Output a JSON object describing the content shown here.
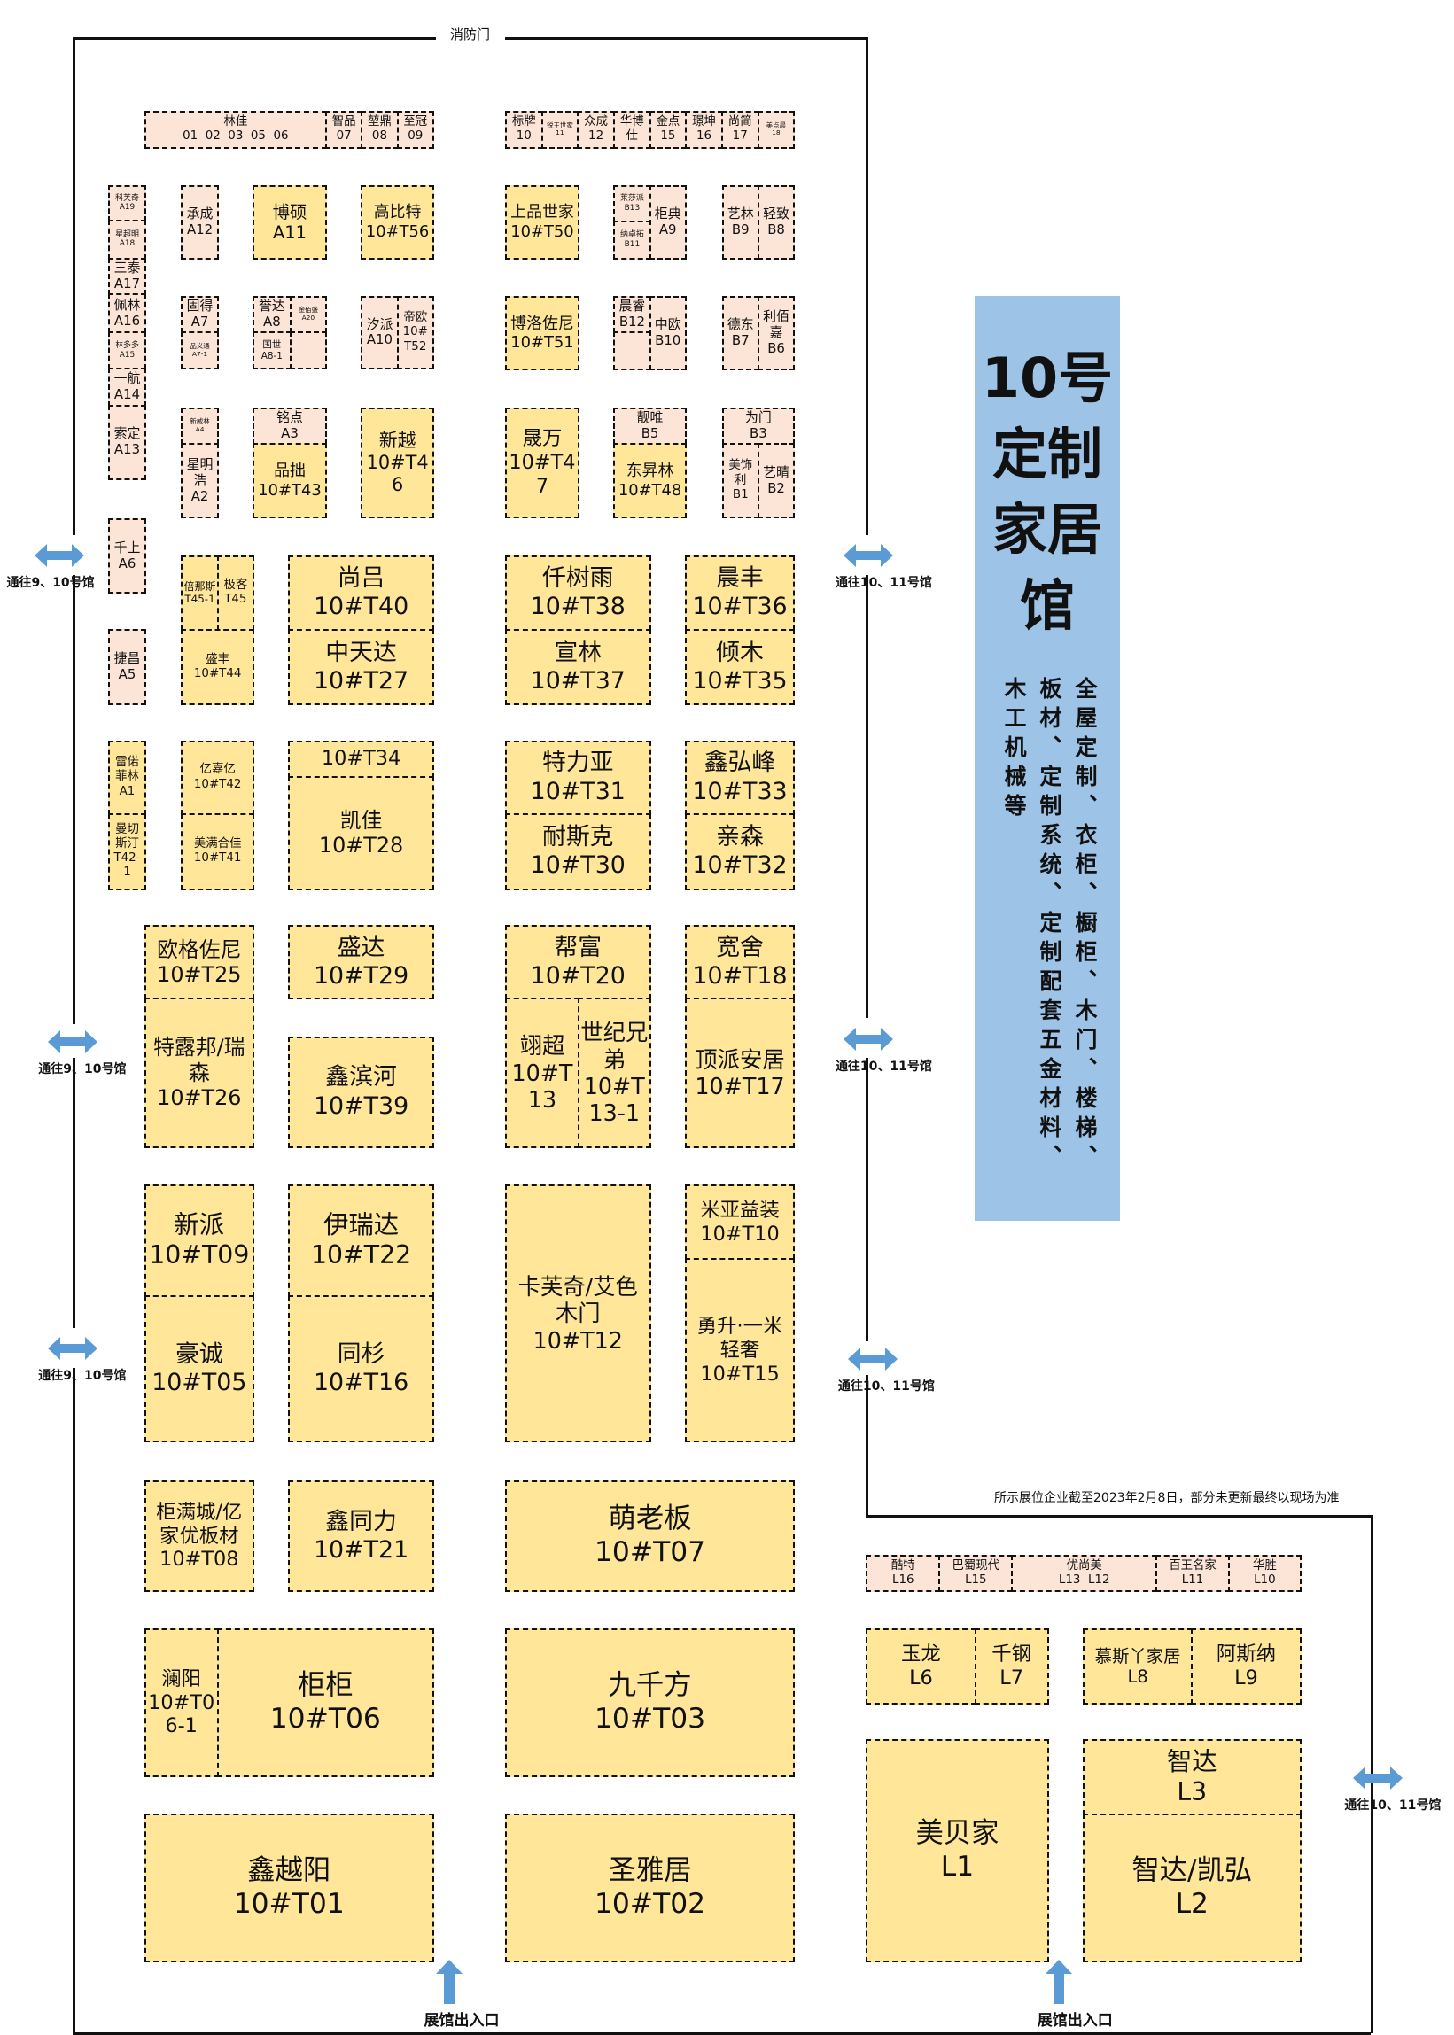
{
  "labels": {
    "fire_door": "消防门",
    "to_halls_9_10": "通往9、10号馆",
    "to_halls_10_11": "通往10、11号馆",
    "entrance": "展馆出入口",
    "note": "所示展位企业截至2023年2月8日，部分未更新最终以现场为准"
  },
  "panel": {
    "title": "10号定制家居馆",
    "columns": [
      "全屋定制、衣柜、橱柜、木门、楼梯、",
      "板材、定制系统、定制配套五金材料、",
      "木工机械等"
    ]
  },
  "colors": {
    "pink_booth": "#fce4d6",
    "yellow_booth": "#ffe699",
    "panel": "#9dc3e6",
    "arrow": "#5b9bd5"
  },
  "booths": [
    {
      "name": "林佳",
      "code": "01  02  03  05  06"
    },
    {
      "name": "智品",
      "code": "07"
    },
    {
      "name": "堃鼎",
      "code": "08"
    },
    {
      "name": "至冠",
      "code": "09"
    },
    {
      "name": "标牌",
      "code": "10"
    },
    {
      "name": "锐王世家",
      "code": "11"
    },
    {
      "name": "众成",
      "code": "12"
    },
    {
      "name": "华博",
      "code": "仕"
    },
    {
      "name": "金点",
      "code": "15"
    },
    {
      "name": "璟坤",
      "code": "16"
    },
    {
      "name": "尚简",
      "code": "17"
    },
    {
      "name": "美点晨",
      "code": "18"
    },
    {
      "name": "科芙奇",
      "code": "A19"
    },
    {
      "name": "星超明",
      "code": "A18"
    },
    {
      "name": "三泰",
      "code": "A17"
    },
    {
      "name": "佩林",
      "code": "A16"
    },
    {
      "name": "林多多",
      "code": "A15"
    },
    {
      "name": "一航",
      "code": "A14"
    },
    {
      "name": "索定",
      "code": "A13"
    },
    {
      "name": "千上",
      "code": "A6"
    },
    {
      "name": "捷昌",
      "code": "A5"
    },
    {
      "name": "雷偌菲林",
      "code": "A1"
    },
    {
      "name": "曼切斯汀",
      "code": "T42-1"
    },
    {
      "name": "承成",
      "code": "A12"
    },
    {
      "name": "固得",
      "code": "A7"
    },
    {
      "name": "品义通",
      "code": "A7-1"
    },
    {
      "name": "新威林",
      "code": "A4"
    },
    {
      "name": "星明浩",
      "code": "A2"
    },
    {
      "name": "博硕",
      "code": "A11"
    },
    {
      "name": "誉达",
      "code": "A8"
    },
    {
      "name": "金佰盛",
      "code": "A20"
    },
    {
      "name": "国世",
      "code": "A8-1"
    },
    {
      "name": "",
      "code": ""
    },
    {
      "name": "铭点",
      "code": "A3"
    },
    {
      "name": "品拙",
      "code": "10#T43"
    },
    {
      "name": "高比特",
      "code": "10#T56"
    },
    {
      "name": "汐派",
      "code": "A10"
    },
    {
      "name": "帝欧",
      "code": "10#T52"
    },
    {
      "name": "新越",
      "code": "10#T46"
    },
    {
      "name": "倍那斯",
      "code": "T45-1"
    },
    {
      "name": "极客",
      "code": "T45"
    },
    {
      "name": "盛丰",
      "code": "10#T44"
    },
    {
      "name": "亿嘉亿",
      "code": "10#T42"
    },
    {
      "name": "美满合佳",
      "code": "10#T41"
    },
    {
      "name": "尚吕",
      "code": "10#T40"
    },
    {
      "name": "中天达",
      "code": "10#T27"
    },
    {
      "name": "",
      "code": "10#T34"
    },
    {
      "name": "凯佳",
      "code": "10#T28"
    },
    {
      "name": "上品世家",
      "code": "10#T50"
    },
    {
      "name": "博洛佐尼",
      "code": "10#T51"
    },
    {
      "name": "晟万",
      "code": "10#T47"
    },
    {
      "name": "莱莎派",
      "code": "B13"
    },
    {
      "name": "纳卓拓",
      "code": "B11"
    },
    {
      "name": "柜典",
      "code": "A9"
    },
    {
      "name": "晨睿",
      "code": "B12"
    },
    {
      "name": "",
      "code": ""
    },
    {
      "name": "中欧",
      "code": "B10"
    },
    {
      "name": "靓唯",
      "code": "B5"
    },
    {
      "name": "东昇林",
      "code": "10#T48"
    },
    {
      "name": "艺林",
      "code": "B9"
    },
    {
      "name": "轻致",
      "code": "B8"
    },
    {
      "name": "德东",
      "code": "B7"
    },
    {
      "name": "利佰嘉",
      "code": "B6"
    },
    {
      "name": "为门",
      "code": "B3"
    },
    {
      "name": "美饰利",
      "code": "B1"
    },
    {
      "name": "艺晴",
      "code": "B2"
    },
    {
      "name": "仟树雨",
      "code": "10#T38"
    },
    {
      "name": "宣林",
      "code": "10#T37"
    },
    {
      "name": "特力亚",
      "code": "10#T31"
    },
    {
      "name": "耐斯克",
      "code": "10#T30"
    },
    {
      "name": "帮富",
      "code": "10#T20"
    },
    {
      "name": "翊超",
      "code": "10#T13"
    },
    {
      "name": "世纪兄弟",
      "code": "10#T13-1"
    },
    {
      "name": "晨丰",
      "code": "10#T36"
    },
    {
      "name": "倾木",
      "code": "10#T35"
    },
    {
      "name": "鑫弘峰",
      "code": "10#T33"
    },
    {
      "name": "亲森",
      "code": "10#T32"
    },
    {
      "name": "宽舍",
      "code": "10#T18"
    },
    {
      "name": "顶派安居",
      "code": "10#T17"
    },
    {
      "name": "欧格佐尼",
      "code": "10#T25"
    },
    {
      "name": "特露邦/瑞森",
      "code": "10#T26"
    },
    {
      "name": "新派",
      "code": "10#T09"
    },
    {
      "name": "豪诚",
      "code": "10#T05"
    },
    {
      "name": "柜满城/亿家优板材",
      "code": "10#T08"
    },
    {
      "name": "澜阳",
      "code": "10#T06-1"
    },
    {
      "name": "柜柜",
      "code": "10#T06"
    },
    {
      "name": "鑫越阳",
      "code": "10#T01"
    },
    {
      "name": "盛达",
      "code": "10#T29"
    },
    {
      "name": "鑫滨河",
      "code": "10#T39"
    },
    {
      "name": "伊瑞达",
      "code": "10#T22"
    },
    {
      "name": "同杉",
      "code": "10#T16"
    },
    {
      "name": "鑫同力",
      "code": "10#T21"
    },
    {
      "name": "卡芙奇/艾色木门",
      "code": "10#T12"
    },
    {
      "name": "米亚益装",
      "code": "10#T10"
    },
    {
      "name": "勇升·一米轻奢",
      "code": "10#T15"
    },
    {
      "name": "萌老板",
      "code": "10#T07"
    },
    {
      "name": "九千方",
      "code": "10#T03"
    },
    {
      "name": "圣雅居",
      "code": "10#T02"
    },
    {
      "name": "酷特",
      "code": "L16"
    },
    {
      "name": "巴蜀现代",
      "code": "L15"
    },
    {
      "name": "优尚美",
      "code": "L13  L12"
    },
    {
      "name": "百王名家",
      "code": "L11"
    },
    {
      "name": "华胜",
      "code": "L10"
    },
    {
      "name": "玉龙",
      "code": "L6"
    },
    {
      "name": "千钢",
      "code": "L7"
    },
    {
      "name": "慕斯丫家居",
      "code": "L8"
    },
    {
      "name": "阿斯纳",
      "code": "L9"
    },
    {
      "name": "美贝家",
      "code": "L1"
    },
    {
      "name": "智达",
      "code": "L3"
    },
    {
      "name": "智达/凯弘",
      "code": "L2"
    }
  ]
}
